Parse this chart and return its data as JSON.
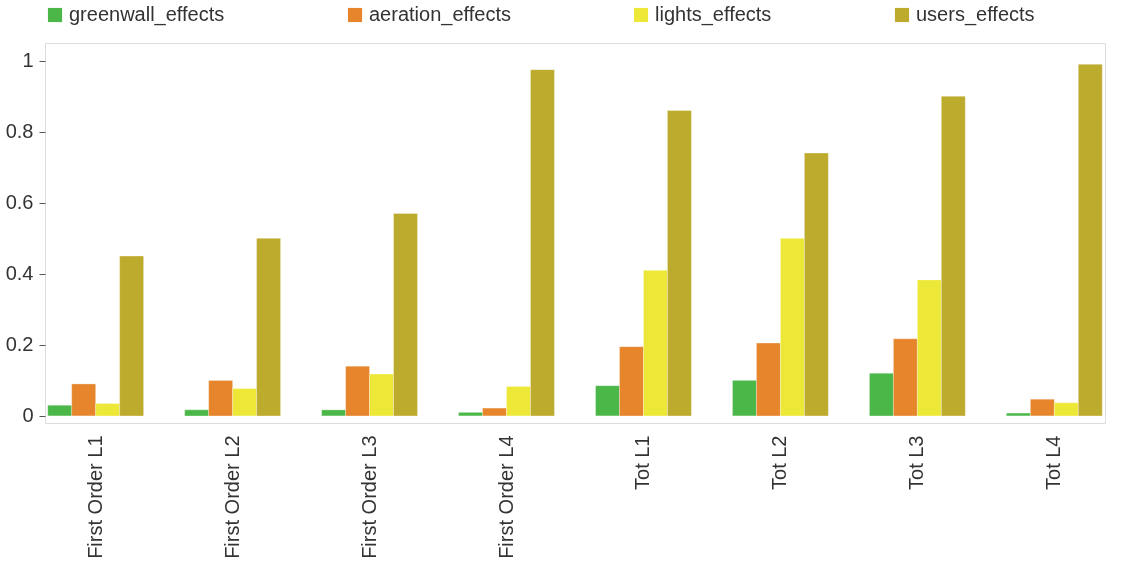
{
  "chart_data": {
    "type": "bar",
    "categories": [
      "First Order L1",
      "First Order L2",
      "First Order L3",
      "First Order L4",
      "Tot L1",
      "Tot L2",
      "Tot L3",
      "Tot L4"
    ],
    "series": [
      {
        "name": "greenwall_effects",
        "color": "#4ab748",
        "values": [
          0.03,
          0.017,
          0.017,
          0.01,
          0.085,
          0.1,
          0.12,
          0.008
        ]
      },
      {
        "name": "aeration_effects",
        "color": "#e6852b",
        "values": [
          0.09,
          0.1,
          0.14,
          0.022,
          0.195,
          0.205,
          0.217,
          0.047
        ]
      },
      {
        "name": "lights_effects",
        "color": "#ede838",
        "values": [
          0.035,
          0.077,
          0.118,
          0.083,
          0.41,
          0.5,
          0.383,
          0.037
        ]
      },
      {
        "name": "users_effects",
        "color": "#bdab2e",
        "values": [
          0.45,
          0.5,
          0.57,
          0.975,
          0.86,
          0.74,
          0.9,
          0.99
        ]
      }
    ],
    "ylim": [
      -0.02,
      1.05
    ],
    "yticks": [
      {
        "value": 0,
        "label": "0"
      },
      {
        "value": 0.2,
        "label": "0.2"
      },
      {
        "value": 0.4,
        "label": "0.4"
      },
      {
        "value": 0.6,
        "label": "0.6"
      },
      {
        "value": 0.8,
        "label": "0.8"
      },
      {
        "value": 1,
        "label": "1"
      }
    ],
    "grid": false,
    "legend": "top"
  }
}
